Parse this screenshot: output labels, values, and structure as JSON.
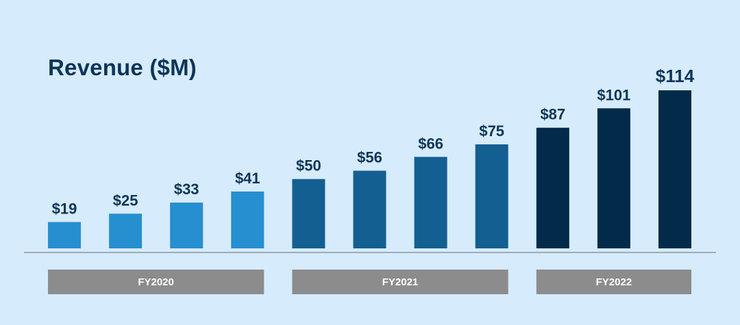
{
  "chart_data": {
    "type": "bar",
    "title": "Revenue ($M)",
    "categories": [
      "",
      "",
      "",
      "",
      "",
      "",
      "",
      "",
      "",
      "",
      ""
    ],
    "values": [
      19,
      25,
      33,
      41,
      50,
      56,
      66,
      75,
      87,
      101,
      114
    ],
    "value_labels": [
      "$19",
      "$25",
      "$33",
      "$41",
      "$50",
      "$56",
      "$66",
      "$75",
      "$87",
      "$101",
      "$114"
    ],
    "groups": [
      {
        "label": "FY2020",
        "start": 0,
        "end": 3,
        "color": "#268fd0"
      },
      {
        "label": "FY2021",
        "start": 4,
        "end": 7,
        "color": "#135f92"
      },
      {
        "label": "FY2022",
        "start": 8,
        "end": 10,
        "color": "#012b49"
      }
    ],
    "ylim": [
      0,
      114
    ],
    "grid": false,
    "legend": "none",
    "colors": {
      "background": "#d6ebfb",
      "text": "#0d3558",
      "baseline": "#8a96a2",
      "group_band": "#8c8c8c",
      "group_band_text": "#ffffff"
    }
  }
}
